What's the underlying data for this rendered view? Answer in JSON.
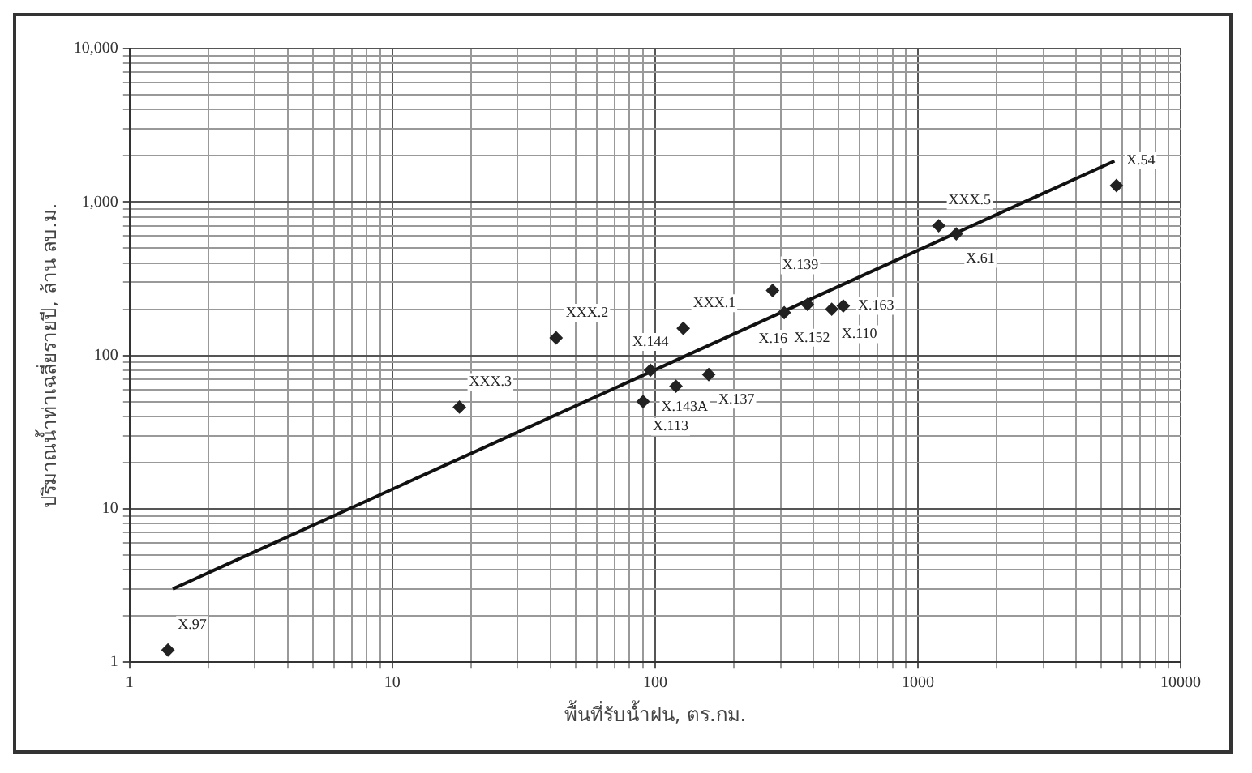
{
  "chart_data": {
    "type": "scatter",
    "xlabel": "พื้นที่รับน้ำฝน, ตร.กม.",
    "ylabel": "ปริมาณน้ำท่าเฉลี่ยรายปี, ล้าน ลบ.ม.",
    "log": "xy",
    "grid": true,
    "legend": false,
    "xlim": [
      1,
      10000
    ],
    "ylim": [
      1,
      10000
    ],
    "xticks": [
      1,
      {
        "value": 2,
        "label": null
      },
      {
        "value": 3,
        "label": null
      },
      {
        "value": 4,
        "label": null
      },
      {
        "value": 5,
        "label": null
      },
      {
        "value": 6,
        "label": null
      },
      {
        "value": 7,
        "label": null
      },
      {
        "value": 8,
        "label": null
      },
      {
        "value": 9,
        "label": null
      },
      10,
      {
        "value": 20,
        "label": null
      },
      {
        "value": 30,
        "label": null
      },
      {
        "value": 40,
        "label": null
      },
      {
        "value": 50,
        "label": null
      },
      {
        "value": 60,
        "label": null
      },
      {
        "value": 70,
        "label": null
      },
      {
        "value": 80,
        "label": null
      },
      {
        "value": 90,
        "label": null
      },
      100,
      {
        "value": 200,
        "label": null
      },
      {
        "value": 300,
        "label": null
      },
      {
        "value": 400,
        "label": null
      },
      {
        "value": 500,
        "label": null
      },
      {
        "value": 600,
        "label": null
      },
      {
        "value": 700,
        "label": null
      },
      {
        "value": 800,
        "label": null
      },
      {
        "value": 900,
        "label": null
      },
      1000,
      {
        "value": 2000,
        "label": null
      },
      {
        "value": 3000,
        "label": null
      },
      {
        "value": 4000,
        "label": null
      },
      {
        "value": 5000,
        "label": null
      },
      {
        "value": 6000,
        "label": null
      },
      {
        "value": 7000,
        "label": null
      },
      {
        "value": 8000,
        "label": null
      },
      {
        "value": 9000,
        "label": null
      },
      10000
    ],
    "yticks": [
      1,
      {
        "value": 2,
        "label": null
      },
      {
        "value": 3,
        "label": null
      },
      {
        "value": 4,
        "label": null
      },
      {
        "value": 5,
        "label": null
      },
      {
        "value": 6,
        "label": null
      },
      {
        "value": 7,
        "label": null
      },
      {
        "value": 8,
        "label": null
      },
      {
        "value": 9,
        "label": null
      },
      10,
      {
        "value": 20,
        "label": null
      },
      {
        "value": 30,
        "label": null
      },
      {
        "value": 40,
        "label": null
      },
      {
        "value": 50,
        "label": null
      },
      {
        "value": 60,
        "label": null
      },
      {
        "value": 70,
        "label": null
      },
      {
        "value": 80,
        "label": null
      },
      {
        "value": 90,
        "label": null
      },
      100,
      {
        "value": 200,
        "label": null
      },
      {
        "value": 300,
        "label": null
      },
      {
        "value": 400,
        "label": null
      },
      {
        "value": 500,
        "label": null
      },
      {
        "value": 600,
        "label": null
      },
      {
        "value": 700,
        "label": null
      },
      {
        "value": 800,
        "label": null
      },
      {
        "value": 900,
        "label": null
      },
      {
        "value": 1000,
        "label": "1,000"
      },
      {
        "value": 2000,
        "label": null
      },
      {
        "value": 3000,
        "label": null
      },
      {
        "value": 4000,
        "label": null
      },
      {
        "value": 5000,
        "label": null
      },
      {
        "value": 6000,
        "label": null
      },
      {
        "value": 7000,
        "label": null
      },
      {
        "value": 8000,
        "label": null
      },
      {
        "value": 9000,
        "label": null
      },
      {
        "value": 10000,
        "label": "10,000"
      }
    ],
    "series": [
      {
        "color": "#222222",
        "marker": "diamond",
        "x": [
          1.4,
          18,
          42,
          128,
          96,
          90,
          120,
          160,
          280,
          310,
          380,
          470,
          520,
          1200,
          1400,
          5700
        ],
        "values": [
          1.2,
          46,
          130,
          150,
          80,
          50,
          63,
          75,
          265,
          190,
          215,
          200,
          210,
          700,
          620,
          1280
        ]
      },
      {
        "type": "line",
        "marker": "none",
        "color": "#111111",
        "x": [
          1.46,
          5600
        ],
        "values": [
          3,
          1850
        ]
      }
    ],
    "annotations": [
      {
        "text": "X.97",
        "x": 1.4,
        "y": 1.2
      },
      {
        "text": "XXX.3",
        "x": 18,
        "y": 46
      },
      {
        "text": "XXX.2",
        "x": 42,
        "y": 130
      },
      {
        "text": "XXX.1",
        "x": 128,
        "y": 150
      },
      {
        "text": "X.144",
        "x": 96,
        "y": 80
      },
      {
        "text": "X.113",
        "x": 90,
        "y": 50
      },
      {
        "text": "X.143A",
        "x": 120,
        "y": 63
      },
      {
        "text": "X.137",
        "x": 160,
        "y": 75
      },
      {
        "text": "X.139",
        "x": 280,
        "y": 265
      },
      {
        "text": "X.152",
        "x": 310,
        "y": 190
      },
      {
        "text": "X.16",
        "x": 380,
        "y": 215
      },
      {
        "text": "X.110",
        "x": 470,
        "y": 200
      },
      {
        "text": "X.163",
        "x": 520,
        "y": 210
      },
      {
        "text": "XXX.5",
        "x": 1200,
        "y": 700
      },
      {
        "text": "X.61",
        "x": 1400,
        "y": 620
      },
      {
        "text": "X.54",
        "x": 5700,
        "y": 1280
      }
    ]
  }
}
